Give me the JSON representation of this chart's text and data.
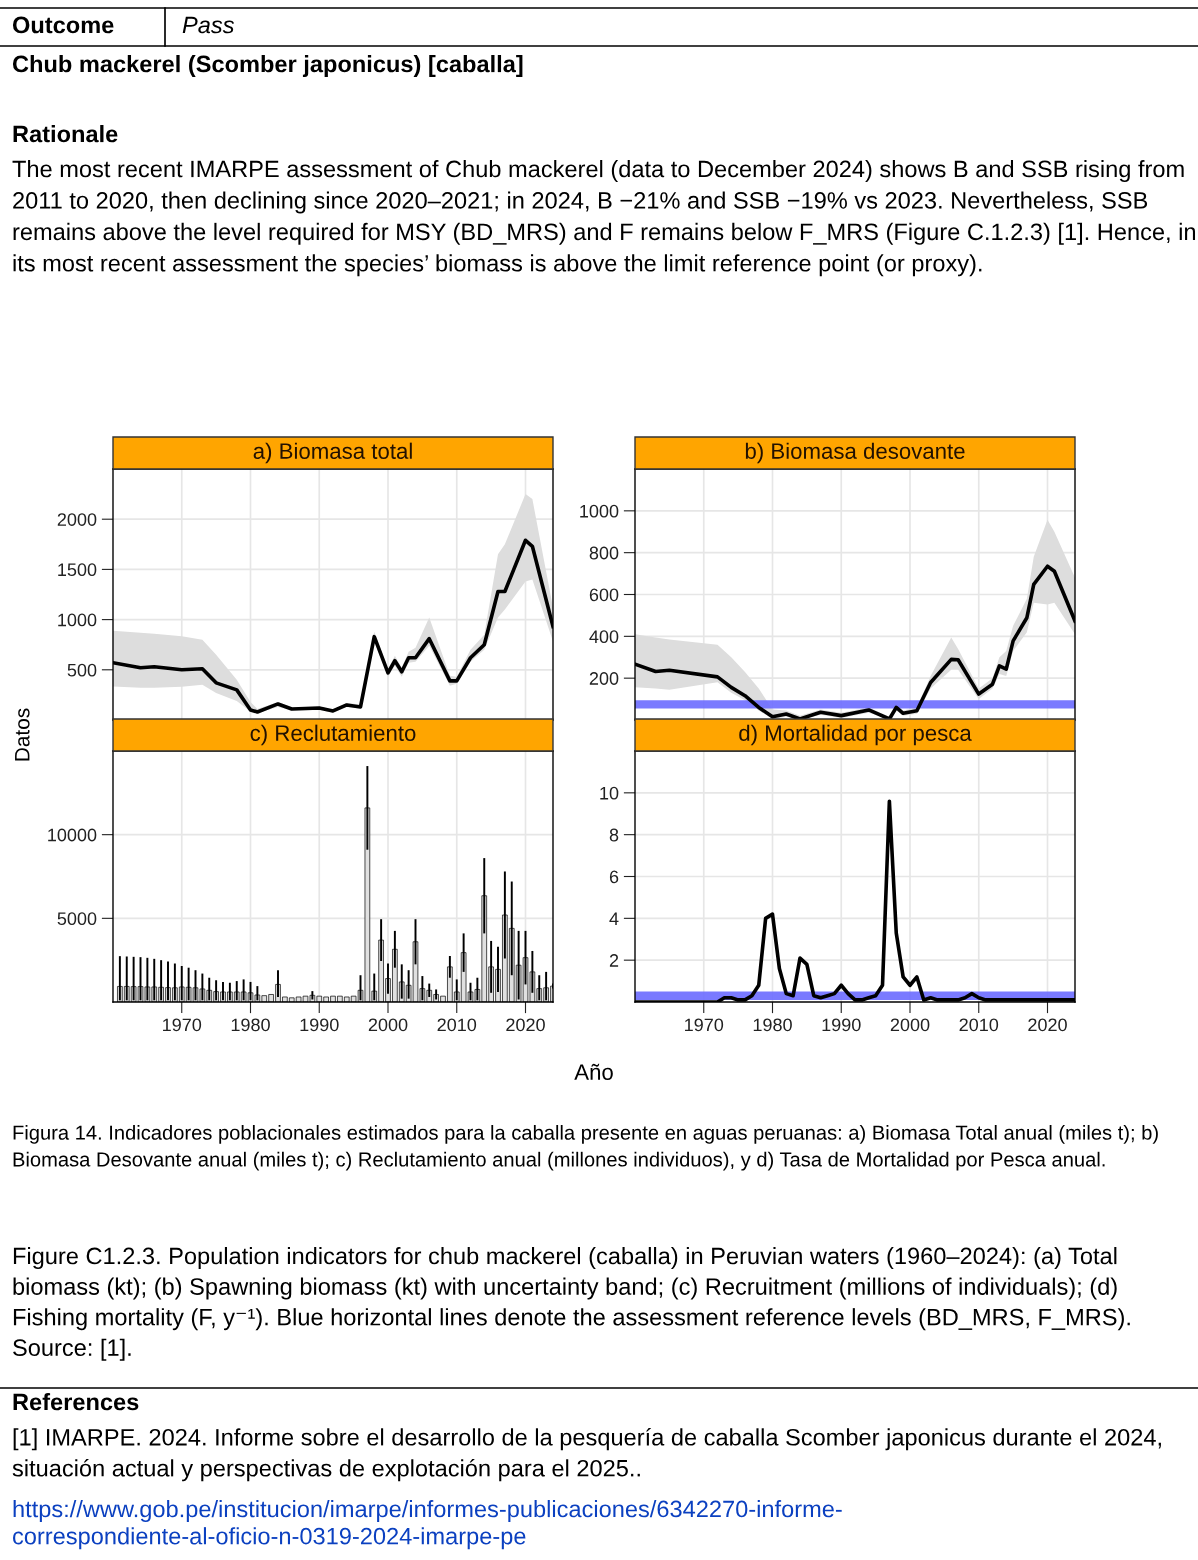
{
  "chart_data": [
    {
      "type": "line",
      "title": "a) Biomasa total",
      "ylabel": "Datos",
      "annotations": [
        "Outcome",
        "Pass",
        "Chub mackerel (Scomber japonicus) [caballa]",
        "Rationale",
        "The most recent IMARPE assessment of Chub mackerel (data to December 2024) shows B and SSB rising from 2011 to 2020, then declining since 2020–2021; in 2024, B −21% and SSB −19% vs 2023. Nevertheless, SSB remains above the level required for MSY (BD_MRS) and F remains below F_MRS (Figure C.1.2.3) [1]. Hence, in its most recent assessment the species’ biomass is above the limit reference point (or proxy).",
        "Figura 14. Indicadores poblacionales estimados para la caballa presente en aguas peruanas: a) Biomasa Total anual (miles t); b) Biomasa Desovante anual (miles t); c) Reclutamiento anual (millones individuos), y d) Tasa de Mortalidad por Pesca anual.",
        "Figure C1.2.3. Population indicators for chub mackerel (caballa) in Peruvian waters (1960–2024): (a) Total biomass (kt); (b) Spawning biomass (kt) with uncertainty band; (c) Recruitment (millions of individuals); (d) Fishing mortality (F, y⁻¹). Blue horizontal lines denote the assessment reference levels (BD_MRS, F_MRS). Source: [1].",
        "References",
        "[1] IMARPE. 2024. Informe sobre el desarrollo de la pesquería de caballa Scomber japonicus durante el 2024, situación actual y perspectivas de explotación para el 2025..",
        "https://www.gob.pe/institucion/imarpe/informes-publicaciones/6342270-informe-\ncorrespondiente-al-oficio-n-0319-2024-imarpe-pe"
      ],
      "xlim": [
        1960,
        2024
      ],
      "ylim": [
        0,
        2500
      ],
      "xticks": [
        1970,
        1980,
        1990,
        2000,
        2010,
        2020
      ],
      "yticks": [
        500,
        1000,
        1500,
        2000
      ],
      "grid": true,
      "tick_labels": "y",
      "series": [
        {
          "color": "#000000",
          "x": [
            1960,
            1964,
            1966,
            1970,
            1973,
            1975,
            1978,
            1980,
            1981,
            1984,
            1986,
            1990,
            1992,
            1994,
            1996,
            1998,
            2000,
            2001,
            2002,
            2003,
            2004,
            2006,
            2009,
            2010,
            2012,
            2014,
            2016,
            2017,
            2020,
            2021,
            2024
          ],
          "values": [
            570,
            520,
            530,
            500,
            510,
            370,
            300,
            100,
            80,
            160,
            110,
            120,
            90,
            150,
            130,
            830,
            470,
            590,
            480,
            620,
            620,
            810,
            390,
            390,
            620,
            750,
            1280,
            1280,
            1790,
            1730,
            930
          ],
          "lower": [
            333,
            320,
            320,
            330,
            350,
            270,
            190,
            85,
            70,
            130,
            95,
            100,
            75,
            130,
            115,
            780,
            430,
            540,
            430,
            570,
            580,
            740,
            340,
            360,
            580,
            700,
            1020,
            1100,
            1380,
            1400,
            783
          ],
          "upper": [
            890,
            870,
            860,
            833,
            800,
            650,
            400,
            180,
            110,
            180,
            125,
            135,
            105,
            170,
            155,
            880,
            510,
            640,
            520,
            680,
            720,
            1020,
            440,
            430,
            700,
            850,
            1650,
            1750,
            2250,
            2200,
            1117
          ]
        }
      ]
    },
    {
      "type": "line",
      "title": "b) Biomasa desovante",
      "xlim": [
        1960,
        2024
      ],
      "ylim": [
        0,
        1200
      ],
      "xticks": [
        1970,
        1980,
        1990,
        2000,
        2010,
        2020
      ],
      "yticks": [
        200,
        400,
        600,
        800,
        1000
      ],
      "grid": true,
      "tick_labels": "y",
      "ref_lines": [
        {
          "axis": "y",
          "value": 75,
          "label": null,
          "color": "#6b6bff"
        }
      ],
      "series": [
        {
          "color": "#000000",
          "x": [
            1960,
            1963,
            1965,
            1972,
            1974,
            1976,
            1978,
            1980,
            1982,
            1984,
            1987,
            1990,
            1994,
            1997,
            1998,
            1999,
            2001,
            2003,
            2006,
            2007,
            2010,
            2012,
            2013,
            2014,
            2015,
            2017,
            2018,
            2020,
            2021,
            2024
          ],
          "values": [
            267,
            232,
            238,
            206,
            156,
            116,
            60,
            16,
            29,
            5,
            37,
            21,
            48,
            5,
            60,
            32,
            44,
            179,
            290,
            288,
            124,
            171,
            259,
            243,
            378,
            489,
            648,
            735,
            711,
            473
          ],
          "lower": [
            156,
            150,
            145,
            180,
            130,
            95,
            45,
            5,
            15,
            2,
            25,
            10,
            35,
            2,
            45,
            20,
            30,
            150,
            240,
            240,
            100,
            150,
            220,
            210,
            330,
            420,
            560,
            552,
            560,
            410
          ],
          "upper": [
            410,
            395,
            385,
            360,
            300,
            230,
            150,
            50,
            45,
            20,
            50,
            35,
            60,
            15,
            75,
            45,
            60,
            210,
            394,
            340,
            150,
            200,
            300,
            330,
            450,
            580,
            780,
            957,
            900,
            680
          ]
        }
      ]
    },
    {
      "type": "bar",
      "title": "c) Reclutamiento",
      "xlabel": "Año",
      "xlim": [
        1960,
        2024
      ],
      "ylim": [
        0,
        15000
      ],
      "xticks": [
        1970,
        1980,
        1990,
        2000,
        2010,
        2020
      ],
      "yticks": [
        5000,
        10000
      ],
      "grid": true,
      "color": "#e0e0e0",
      "x": [
        1961,
        1962,
        1963,
        1964,
        1965,
        1966,
        1967,
        1968,
        1969,
        1970,
        1971,
        1972,
        1973,
        1974,
        1975,
        1976,
        1977,
        1978,
        1979,
        1980,
        1981,
        1982,
        1983,
        1984,
        1985,
        1986,
        1987,
        1988,
        1989,
        1990,
        1991,
        1992,
        1993,
        1994,
        1995,
        1996,
        1997,
        1998,
        1999,
        2000,
        2001,
        2002,
        2003,
        2004,
        2005,
        2006,
        2007,
        2008,
        2009,
        2010,
        2011,
        2012,
        2013,
        2014,
        2015,
        2016,
        2017,
        2018,
        2019,
        2020,
        2021,
        2022,
        2023,
        2024
      ],
      "values": [
        930,
        930,
        920,
        920,
        900,
        900,
        880,
        860,
        850,
        900,
        880,
        850,
        780,
        700,
        620,
        600,
        600,
        600,
        600,
        550,
        420,
        380,
        450,
        1050,
        300,
        250,
        300,
        350,
        400,
        350,
        300,
        350,
        350,
        300,
        350,
        700,
        11600,
        650,
        3700,
        1400,
        3150,
        1200,
        1000,
        3600,
        800,
        700,
        450,
        350,
        2100,
        600,
        2950,
        600,
        750,
        6350,
        2100,
        1950,
        5200,
        4400,
        2200,
        2650,
        1800,
        800,
        850,
        950
      ],
      "errors": [
        [
          100,
          2740
        ],
        [
          100,
          2720
        ],
        [
          100,
          2700
        ],
        [
          100,
          2680
        ],
        [
          100,
          2640
        ],
        [
          100,
          2580
        ],
        [
          100,
          2500
        ],
        [
          100,
          2420
        ],
        [
          100,
          2300
        ],
        [
          100,
          2150
        ],
        [
          100,
          2050
        ],
        [
          100,
          1900
        ],
        [
          100,
          1700
        ],
        [
          100,
          1450
        ],
        [
          100,
          1300
        ],
        [
          100,
          1200
        ],
        [
          100,
          1150
        ],
        [
          100,
          1250
        ],
        [
          100,
          1350
        ],
        [
          100,
          1200
        ],
        [
          100,
          950
        ],
        null,
        null,
        [
          300,
          1900
        ],
        null,
        null,
        null,
        null,
        [
          150,
          650
        ],
        null,
        null,
        null,
        null,
        null,
        null,
        [
          100,
          1600
        ],
        [
          9100,
          14100
        ],
        [
          100,
          1700
        ],
        [
          2450,
          4950
        ],
        [
          500,
          2300
        ],
        [
          2050,
          4250
        ],
        [
          200,
          2250
        ],
        [
          200,
          1900
        ],
        [
          2250,
          4950
        ],
        [
          100,
          1550
        ],
        [
          300,
          1100
        ],
        [
          150,
          750
        ],
        null,
        [
          1450,
          2750
        ],
        [
          100,
          1350
        ],
        [
          1800,
          4100
        ],
        [
          100,
          1150
        ],
        [
          100,
          1450
        ],
        [
          4100,
          8600
        ],
        [
          550,
          3650
        ],
        [
          600,
          3300
        ],
        [
          2600,
          7800
        ],
        [
          1600,
          7200
        ],
        [
          150,
          4250
        ],
        [
          1050,
          4250
        ],
        [
          550,
          3050
        ],
        [
          100,
          1600
        ],
        [
          100,
          1800
        ],
        [
          800,
          1100
        ]
      ]
    },
    {
      "type": "line",
      "title": "d) Mortalidad por pesca",
      "xlim": [
        1960,
        2024
      ],
      "ylim": [
        0,
        12
      ],
      "xticks": [
        1970,
        1980,
        1990,
        2000,
        2010,
        2020
      ],
      "yticks": [
        2,
        4,
        6,
        8,
        10
      ],
      "grid": true,
      "ref_lines": [
        {
          "axis": "y",
          "value": 0.3,
          "label": null,
          "color": "#6b6bff"
        }
      ],
      "series": [
        {
          "color": "#000000",
          "x": [
            1960,
            1972,
            1973,
            1974,
            1975,
            1976,
            1977,
            1978,
            1979,
            1980,
            1981,
            1982,
            1983,
            1984,
            1985,
            1986,
            1987,
            1988,
            1989,
            1990,
            1991,
            1992,
            1993,
            1994,
            1995,
            1996,
            1997,
            1998,
            1999,
            2000,
            2001,
            2002,
            2003,
            2004,
            2005,
            2006,
            2007,
            2008,
            2009,
            2010,
            2011,
            2012,
            2014,
            2016,
            2018,
            2020,
            2024
          ],
          "values": [
            0,
            0,
            0.2,
            0.2,
            0.1,
            0.1,
            0.3,
            0.8,
            4.0,
            4.2,
            1.6,
            0.4,
            0.3,
            2.1,
            1.8,
            0.3,
            0.2,
            0.3,
            0.4,
            0.8,
            0.4,
            0.1,
            0.1,
            0.2,
            0.3,
            0.8,
            9.6,
            3.3,
            1.2,
            0.8,
            1.2,
            0.1,
            0.2,
            0.1,
            0.1,
            0.1,
            0.1,
            0.2,
            0.4,
            0.2,
            0.1,
            0.1,
            0.1,
            0.1,
            0.1,
            0.1,
            0.1
          ]
        }
      ]
    }
  ]
}
